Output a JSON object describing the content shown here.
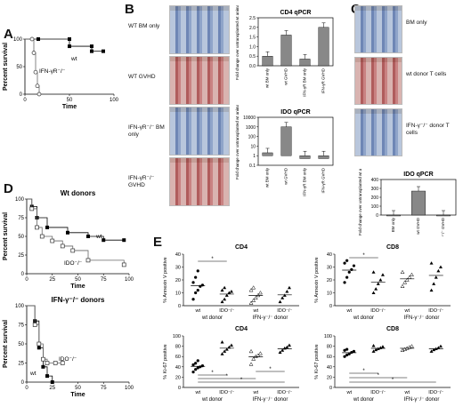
{
  "panels": {
    "A": {
      "label": "A",
      "ylabel": "Percent survival",
      "xlabel": "Time",
      "yticks": [
        "100",
        "50",
        "0"
      ],
      "xticks": [
        "0",
        "50",
        "100"
      ],
      "series_labels": {
        "wt": "wt",
        "ifn": "IFN-γR⁻/⁻"
      }
    },
    "B": {
      "label": "B",
      "images": [
        {
          "caption": "WT BM only"
        },
        {
          "caption": "WT GVHD"
        },
        {
          "caption": "IFN-γR⁻/⁻ BM only"
        },
        {
          "caption": "IFN-γR⁻/⁻ GVHD"
        }
      ],
      "cd4_chart": {
        "title": "CD4 qPCR",
        "ylabel": "Fold change over untransplanted wt animal",
        "yticks": [
          "0.0",
          "0.5",
          "1.0",
          "1.5",
          "2.0",
          "2.5"
        ],
        "categories": [
          "wt BM only",
          "wt GVHD",
          "IFN-γR BM only",
          "IFN-γR GVHD"
        ]
      },
      "ido_chart": {
        "title": "IDO qPCR",
        "ylabel": "Fold change over untransplanted wt animal",
        "yticks": [
          "10000",
          "1000",
          "100",
          "10",
          "1",
          "0.1"
        ],
        "categories": [
          "wt BM only",
          "wt GVHD",
          "IFN-γR BM only",
          "IFN-γR GVHD"
        ]
      }
    },
    "C": {
      "label": "C",
      "images": [
        {
          "caption": "BM only"
        },
        {
          "caption": "wt donor T cells"
        },
        {
          "caption": "IFN-γ⁻/⁻ donor T cells"
        }
      ],
      "ido_chart": {
        "title": "IDO qPCR",
        "ylabel": "Fold change over untransplanted wt animal",
        "yticks": [
          "400",
          "300",
          "200",
          "100",
          "0"
        ],
        "categories": [
          "BM only",
          "wt GVHD",
          "IFN-γ⁻/⁻ GVHD"
        ]
      }
    },
    "D": {
      "label": "D",
      "top_title": "Wt donors",
      "bottom_title": "IFN-γ⁻/⁻ donors",
      "ylabel": "Percent survival",
      "xlabel": "Time",
      "yticks": [
        "100",
        "75",
        "50",
        "25",
        "0"
      ],
      "xticks": [
        "0",
        "25",
        "50",
        "75",
        "100"
      ],
      "series_labels": {
        "wt": "wt",
        "ido": "IDO⁻/⁻"
      }
    },
    "E": {
      "label": "E",
      "annexin_ylabel": "% Annexin V positive",
      "ki67_ylabel": "% Ki-67 positive",
      "cd4": "CD4",
      "cd8": "CD8",
      "yticks_annexin": [
        "40",
        "30",
        "20",
        "10",
        "0"
      ],
      "yticks_ki67": [
        "100",
        "80",
        "60",
        "40",
        "20",
        "0"
      ],
      "x_wt": "wt",
      "x_ido": "IDO⁻/⁻",
      "group_wt": "wt donor",
      "group_ifn": "IFN-γ⁻/⁻ donor",
      "sig": "*"
    }
  },
  "chart_data": [
    {
      "type": "line",
      "title": "",
      "xlabel": "Time",
      "ylabel": "Percent survival",
      "xlim": [
        0,
        100
      ],
      "ylim": [
        0,
        100
      ],
      "series": [
        {
          "name": "wt",
          "x": [
            0,
            15,
            15,
            50,
            50,
            75,
            75,
            88
          ],
          "y": [
            100,
            100,
            100,
            100,
            87,
            87,
            78,
            78
          ]
        },
        {
          "name": "IFN-γR⁻/⁻",
          "x": [
            0,
            8,
            10,
            12,
            14,
            16
          ],
          "y": [
            100,
            100,
            75,
            40,
            15,
            0
          ]
        }
      ]
    },
    {
      "type": "bar",
      "title": "CD4 qPCR",
      "ylabel": "Fold change over untransplanted wt animal",
      "ylim": [
        0,
        2.5
      ],
      "categories": [
        "wt BM only",
        "wt GVHD",
        "IFN-γR BM only",
        "IFN-γR GVHD"
      ],
      "values": [
        0.5,
        1.6,
        0.35,
        2.0
      ]
    },
    {
      "type": "bar",
      "title": "IDO qPCR",
      "ylabel": "Fold change over untransplanted wt animal",
      "ylim": [
        0.1,
        10000
      ],
      "categories": [
        "wt BM only",
        "wt GVHD",
        "IFN-γR BM only",
        "IFN-γR GVHD"
      ],
      "values": [
        2,
        1000,
        0.5,
        0.5
      ]
    },
    {
      "type": "bar",
      "title": "IDO qPCR",
      "ylabel": "Fold change over untransplanted wt animal",
      "ylim": [
        0,
        400
      ],
      "categories": [
        "BM only",
        "wt GVHD",
        "IFN-γ⁻/⁻ GVHD"
      ],
      "values": [
        0,
        270,
        0
      ]
    },
    {
      "type": "line",
      "title": "Wt donors",
      "xlabel": "Time",
      "ylabel": "Percent survival",
      "xlim": [
        0,
        100
      ],
      "ylim": [
        0,
        100
      ],
      "series": [
        {
          "name": "wt",
          "x": [
            0,
            5,
            10,
            20,
            40,
            60,
            75,
            95
          ],
          "y": [
            100,
            90,
            75,
            62,
            55,
            50,
            45,
            45
          ]
        },
        {
          "name": "IDO⁻/⁻",
          "x": [
            0,
            5,
            10,
            15,
            25,
            35,
            45,
            60,
            95
          ],
          "y": [
            100,
            87,
            62,
            50,
            44,
            37,
            31,
            18,
            12
          ]
        }
      ]
    },
    {
      "type": "line",
      "title": "IFN-γ⁻/⁻ donors",
      "xlabel": "Time",
      "ylabel": "Percent survival",
      "xlim": [
        0,
        100
      ],
      "ylim": [
        0,
        100
      ],
      "series": [
        {
          "name": "wt",
          "x": [
            0,
            8,
            12,
            16,
            20,
            25
          ],
          "y": [
            100,
            80,
            45,
            20,
            8,
            0
          ]
        },
        {
          "name": "IDO⁻/⁻",
          "x": [
            0,
            8,
            12,
            16,
            20,
            28,
            35
          ],
          "y": [
            100,
            75,
            50,
            30,
            25,
            25,
            25
          ]
        }
      ]
    },
    {
      "type": "scatter",
      "title": "CD4",
      "ylabel": "% Annexin V positive",
      "categories": [
        "wt donor wt",
        "wt donor IDO⁻/⁻",
        "IFN-γ⁻/⁻ donor wt",
        "IFN-γ⁻/⁻ donor IDO⁻/⁻"
      ],
      "ylim": [
        0,
        40
      ],
      "series": [
        {
          "values": [
            [
              5,
              10,
              12,
              15,
              16,
              18,
              22,
              27
            ],
            [
              3,
              5,
              8,
              10,
              11,
              12,
              14
            ],
            [
              2,
              4,
              6,
              8,
              10,
              12,
              14
            ],
            [
              3,
              6,
              8,
              11,
              14
            ]
          ]
        }
      ]
    },
    {
      "type": "scatter",
      "title": "CD8",
      "ylabel": "% Annexin V positive",
      "categories": [
        "wt donor wt",
        "wt donor IDO⁻/⁻",
        "IFN-γ⁻/⁻ donor wt",
        "IFN-γ⁻/⁻ donor IDO⁻/⁻"
      ],
      "ylim": [
        0,
        40
      ],
      "series": [
        {
          "values": [
            [
              18,
              22,
              26,
              28,
              31,
              33,
              35
            ],
            [
              10,
              13,
              17,
              20,
              24,
              26
            ],
            [
              15,
              18,
              20,
              22,
              24,
              26
            ],
            [
              12,
              17,
              22,
              27,
              30,
              33
            ]
          ]
        }
      ]
    },
    {
      "type": "scatter",
      "title": "CD4",
      "ylabel": "% Ki-67 positive",
      "categories": [
        "wt donor wt",
        "wt donor IDO⁻/⁻",
        "IFN-γ⁻/⁻ donor wt",
        "IFN-γ⁻/⁻ donor IDO⁻/⁻"
      ],
      "ylim": [
        0,
        100
      ],
      "series": [
        {
          "values": [
            [
              30,
              35,
              38,
              40,
              42,
              44,
              47,
              52
            ],
            [
              65,
              70,
              74,
              78,
              82,
              88
            ],
            [
              45,
              55,
              60,
              62,
              66,
              70
            ],
            [
              68,
              72,
              76,
              78,
              82
            ]
          ]
        }
      ]
    },
    {
      "type": "scatter",
      "title": "CD8",
      "ylabel": "% Ki-67 positive",
      "categories": [
        "wt donor wt",
        "wt donor IDO⁻/⁻",
        "IFN-γ⁻/⁻ donor wt",
        "IFN-γ⁻/⁻ donor IDO⁻/⁻"
      ],
      "ylim": [
        0,
        100
      ],
      "series": [
        {
          "values": [
            [
              60,
              63,
              65,
              68,
              70,
              72,
              74
            ],
            [
              70,
              73,
              75,
              77,
              79,
              81
            ],
            [
              72,
              74,
              76,
              78,
              80
            ],
            [
              70,
              73,
              75,
              77,
              80
            ]
          ]
        }
      ]
    }
  ]
}
